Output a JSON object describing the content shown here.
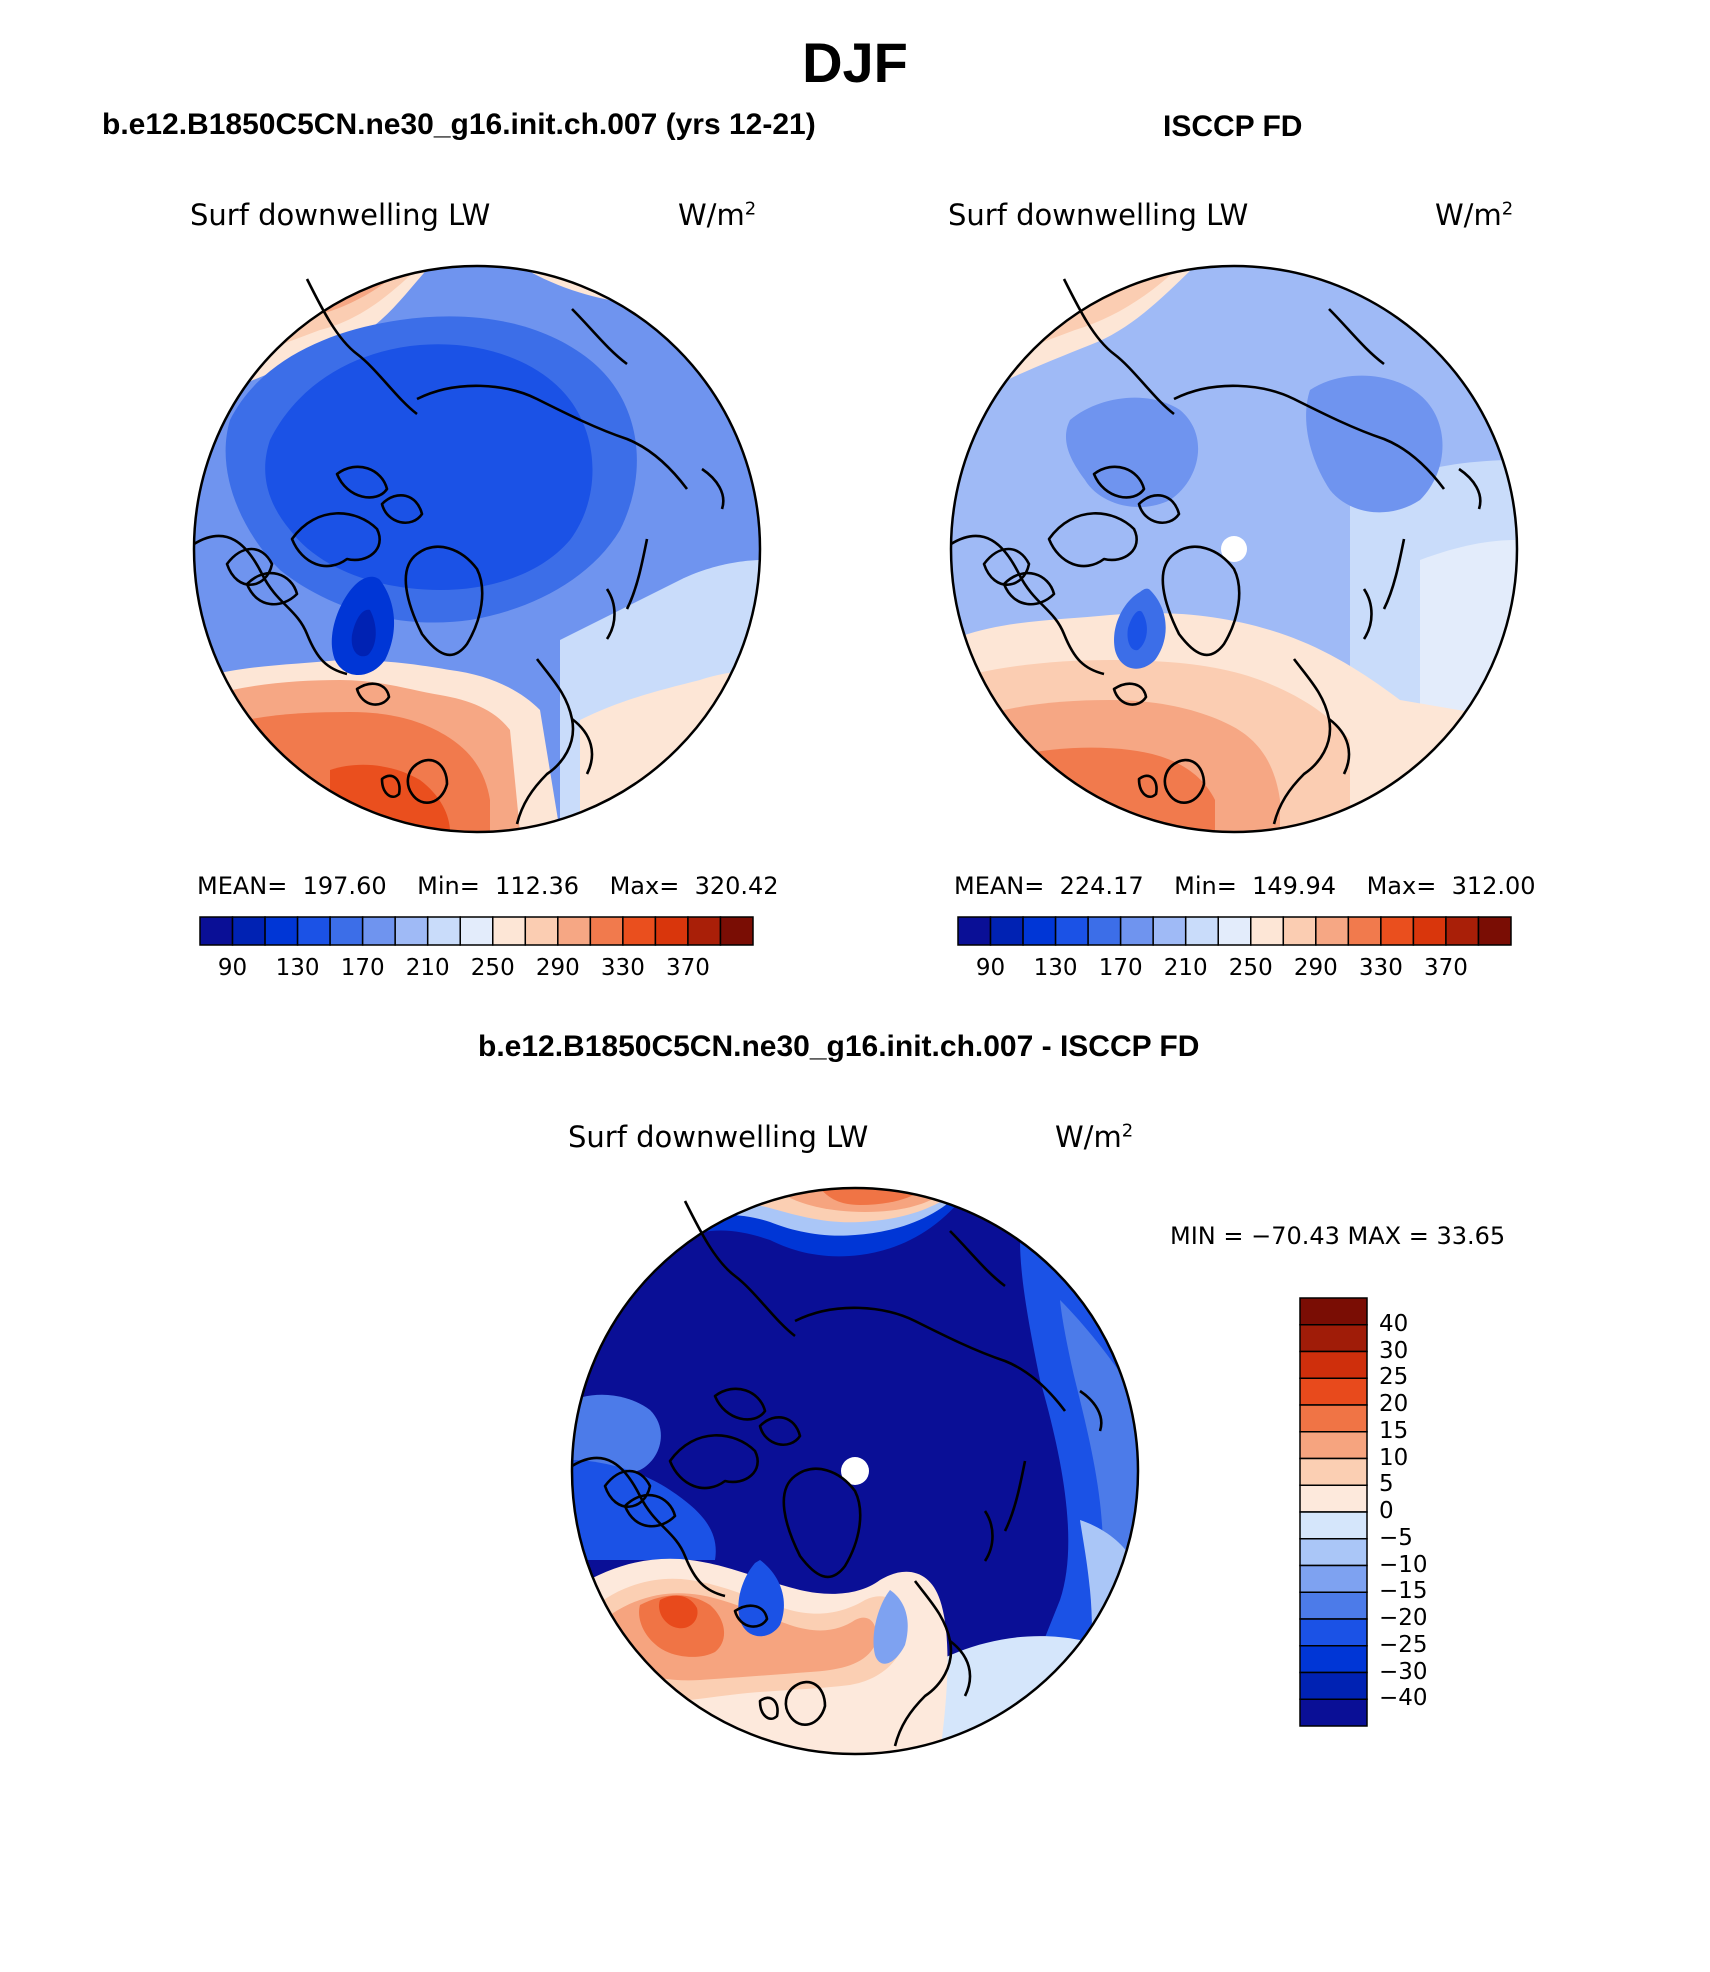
{
  "figure": {
    "title": "DJF",
    "colors": {
      "abs_scale": [
        "#0a0f96",
        "#0022b3",
        "#0036d6",
        "#1b52e6",
        "#3c6ee8",
        "#6f94ef",
        "#9fbaf6",
        "#c9dcfa",
        "#e3ecfb",
        "#fde6d6",
        "#fbcdb2",
        "#f6a784",
        "#f17a4d",
        "#ea4f1e",
        "#d9360c",
        "#a91f08",
        "#7a0d04"
      ],
      "diff_scale": [
        "#0a0f96",
        "#0022b3",
        "#0036d6",
        "#1b52e6",
        "#4c7be9",
        "#7ea2f1",
        "#aac6f7",
        "#d5e6fb",
        "#fde9dc",
        "#fbcfb3",
        "#f6a47f",
        "#f07445",
        "#e84a1c",
        "#cf2f0c",
        "#a01c08",
        "#7a0d04"
      ]
    }
  },
  "panels": {
    "model": {
      "title": "b.e12.B1850C5CN.ne30_g16.init.ch.007 (yrs 12-21)",
      "variable": "Surf downwelling LW",
      "units": "W/m",
      "units_exp": "2",
      "stats": {
        "mean_label": "MEAN=",
        "mean": "197.60",
        "min_label": "Min=",
        "min": "112.36",
        "max_label": "Max=",
        "max": "320.42"
      },
      "colorbar_ticks": [
        "90",
        "130",
        "170",
        "210",
        "250",
        "290",
        "330",
        "370"
      ]
    },
    "obs": {
      "title": "ISCCP FD",
      "variable": "Surf downwelling LW",
      "units": "W/m",
      "units_exp": "2",
      "stats": {
        "mean_label": "MEAN=",
        "mean": "224.17",
        "min_label": "Min=",
        "min": "149.94",
        "max_label": "Max=",
        "max": "312.00"
      },
      "colorbar_ticks": [
        "90",
        "130",
        "170",
        "210",
        "250",
        "290",
        "330",
        "370"
      ]
    },
    "diff": {
      "title": "b.e12.B1850C5CN.ne30_g16.init.ch.007 - ISCCP FD",
      "variable": "Surf downwelling LW",
      "units": "W/m",
      "units_exp": "2",
      "minmax": "MIN = −70.43 MAX =   33.65",
      "colorbar_ticks": [
        "40",
        "30",
        "25",
        "20",
        "15",
        "10",
        "5",
        "0",
        "−5",
        "−10",
        "−15",
        "−20",
        "−25",
        "−30",
        "−40"
      ]
    }
  }
}
